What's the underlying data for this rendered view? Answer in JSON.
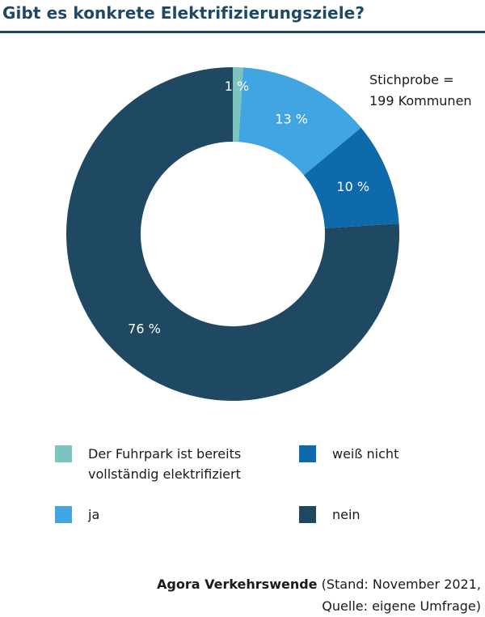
{
  "chart_data": {
    "type": "pie",
    "title": "Gibt es konkrete Elektrifizierungsziele?",
    "annotation": [
      "Stichprobe =",
      "199 Kommunen"
    ],
    "slices": [
      {
        "name": "Der Fuhrpark ist bereits vollständig elektrifiziert",
        "value": 1,
        "label": "1 %",
        "color": "#7cc4c0"
      },
      {
        "name": "ja",
        "value": 13,
        "label": "13 %",
        "color": "#41a5e1"
      },
      {
        "name": "weiß nicht",
        "value": 10,
        "label": "10 %",
        "color": "#0f6aab"
      },
      {
        "name": "nein",
        "value": 76,
        "label": "76 %",
        "color": "#1f4862"
      }
    ],
    "legend": [
      {
        "lines": [
          "Der Fuhrpark ist bereits",
          "vollständig elektrifiziert"
        ],
        "color": "#7cc4c0"
      },
      {
        "lines": [
          "weiß nicht"
        ],
        "color": "#0f6aab"
      },
      {
        "lines": [
          "ja"
        ],
        "color": "#41a5e1"
      },
      {
        "lines": [
          "nein"
        ],
        "color": "#1f4862"
      }
    ],
    "source": {
      "brand": "Agora Verkehrswende",
      "text": " (Stand: November 2021,",
      "line2": "Quelle: eigene Umfrage)"
    }
  }
}
